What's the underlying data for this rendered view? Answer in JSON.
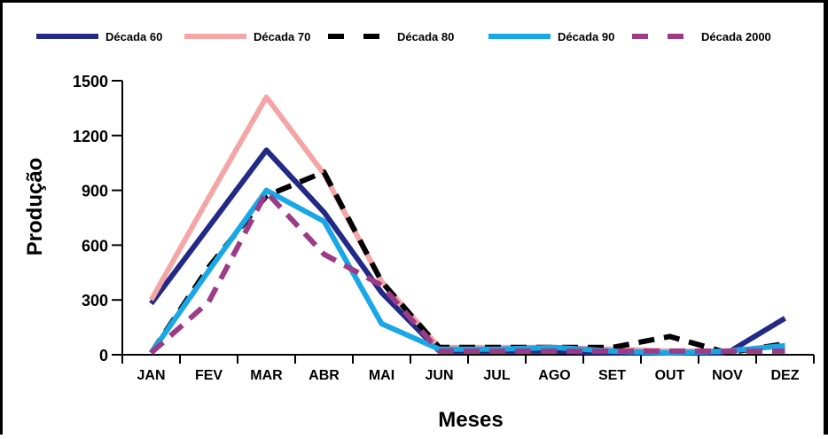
{
  "chart_data": {
    "type": "line",
    "categories": [
      "JAN",
      "FEV",
      "MAR",
      "ABR",
      "MAI",
      "JUN",
      "JUL",
      "AGO",
      "SET",
      "OUT",
      "NOV",
      "DEZ"
    ],
    "xlabel": "Meses",
    "ylabel": "Produção",
    "ylim": [
      0,
      1500
    ],
    "yticks": [
      0,
      300,
      600,
      900,
      1200,
      1500
    ],
    "grid": false,
    "legend_position": "top",
    "series": [
      {
        "name": "Década 60",
        "color": "#232a86",
        "dash": "solid",
        "values": [
          280,
          700,
          1120,
          780,
          340,
          20,
          20,
          20,
          10,
          10,
          10,
          200
        ]
      },
      {
        "name": "Década 70",
        "color": "#f4a6a6",
        "dash": "solid",
        "values": [
          300,
          860,
          1410,
          990,
          400,
          40,
          40,
          40,
          30,
          20,
          20,
          50
        ]
      },
      {
        "name": "Década 80",
        "color": "#000000",
        "dash": "dashed",
        "values": [
          10,
          480,
          870,
          1000,
          400,
          40,
          40,
          40,
          40,
          100,
          10,
          60
        ]
      },
      {
        "name": "Década 90",
        "color": "#1aa7e6",
        "dash": "solid",
        "values": [
          10,
          460,
          900,
          730,
          170,
          30,
          30,
          40,
          20,
          10,
          20,
          50
        ]
      },
      {
        "name": "Década 2000",
        "color": "#9c3c86",
        "dash": "dashed",
        "values": [
          10,
          290,
          890,
          550,
          380,
          20,
          20,
          20,
          20,
          20,
          20,
          20
        ]
      }
    ]
  }
}
